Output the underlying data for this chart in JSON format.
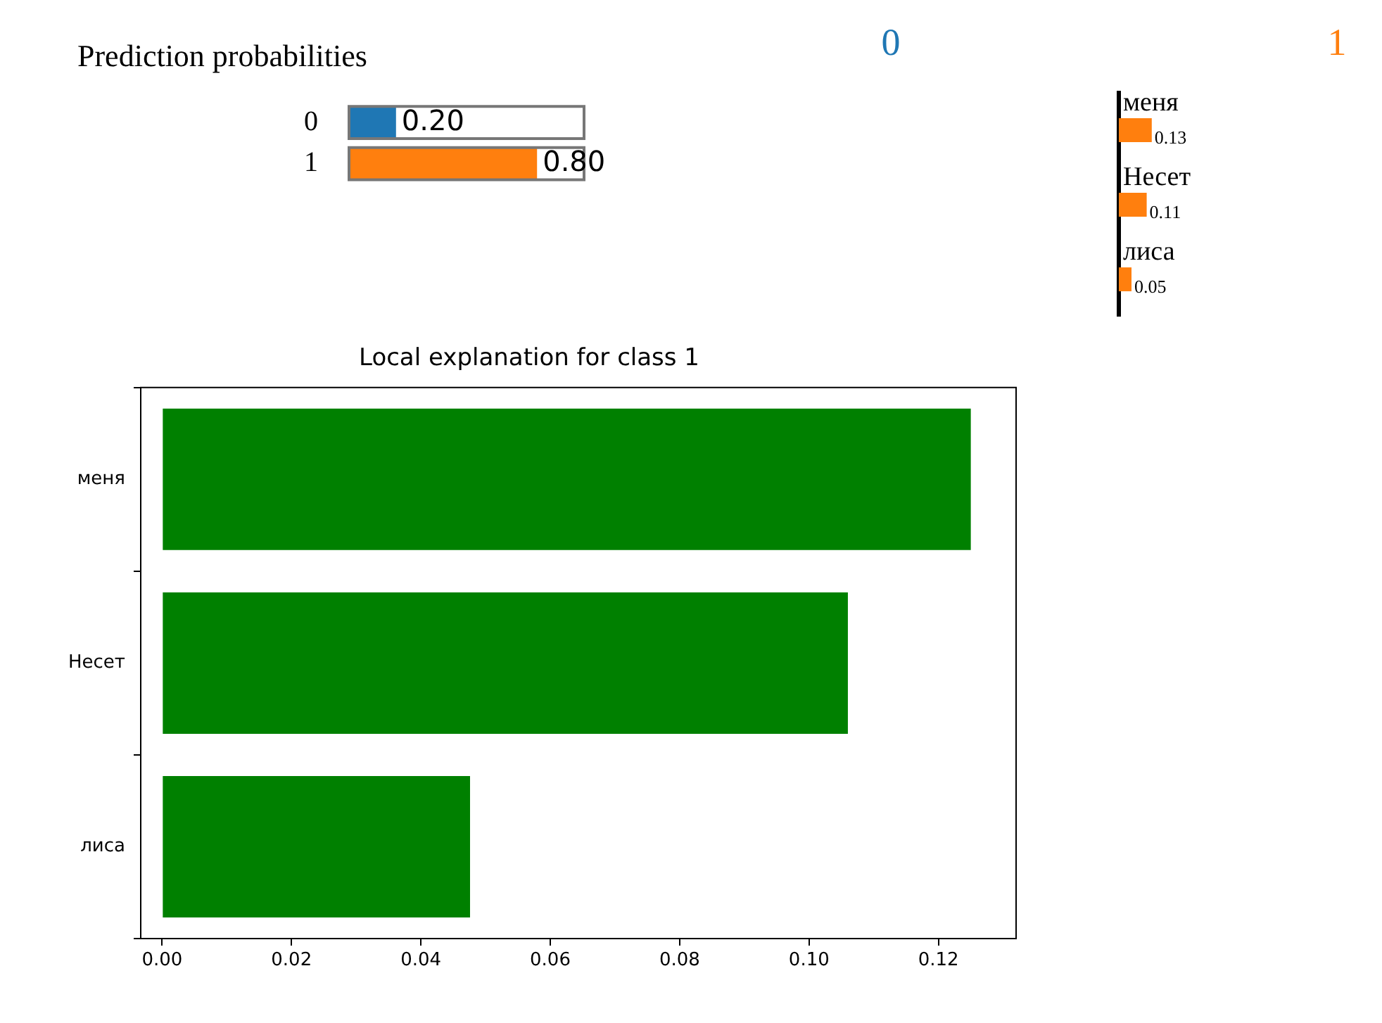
{
  "chart_data": [
    {
      "type": "bar",
      "title": "Prediction probabilities",
      "orientation": "horizontal",
      "categories": [
        "0",
        "1"
      ],
      "values": [
        0.2,
        0.8
      ],
      "colors": [
        "#1f77b4",
        "#ff7f0e"
      ],
      "value_labels": [
        "0.20",
        "0.80"
      ],
      "xlim": [
        0,
        1
      ],
      "tick_labels": "y"
    },
    {
      "type": "bar",
      "orientation": "horizontal",
      "categories": [
        "меня",
        "Несет",
        "лиса"
      ],
      "series": [
        {
          "name": "0",
          "color": "#1f77b4",
          "values": [
            null,
            null,
            null
          ]
        },
        {
          "name": "1",
          "color": "#ff7f0e",
          "values": [
            0.13,
            0.11,
            0.05
          ]
        }
      ],
      "data_labels": true,
      "tick_labels": false
    },
    {
      "type": "bar",
      "title": "Local explanation for class 1",
      "orientation": "horizontal",
      "categories": [
        "меня",
        "Несет",
        "лиса"
      ],
      "values": [
        0.125,
        0.106,
        0.0476
      ],
      "color": "#008000",
      "xlim": [
        -0.0033,
        0.132
      ],
      "xticks": [
        {
          "value": 0,
          "label": "0.00"
        },
        {
          "value": 0.02,
          "label": "0.02"
        },
        {
          "value": 0.04,
          "label": "0.04"
        },
        {
          "value": 0.06,
          "label": "0.06"
        },
        {
          "value": 0.08,
          "label": "0.08"
        },
        {
          "value": 0.1,
          "label": "0.10"
        },
        {
          "value": 0.12,
          "label": "0.12"
        }
      ]
    }
  ]
}
